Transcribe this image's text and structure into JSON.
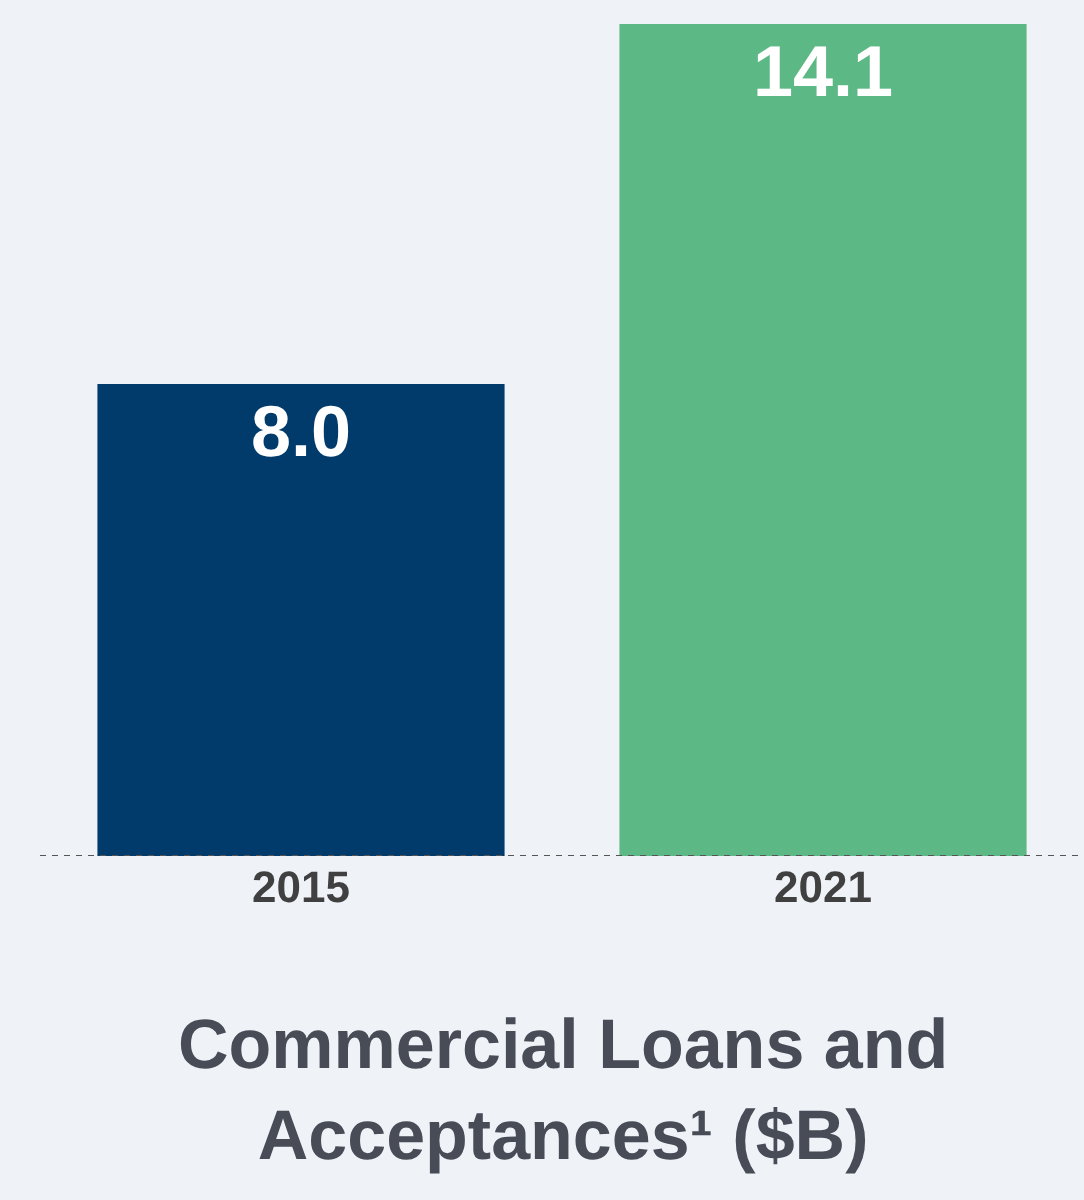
{
  "chart_data": {
    "type": "bar",
    "title": "Commercial Loans and Acceptances¹ ($B)",
    "categories": [
      "2015",
      "2021"
    ],
    "values": [
      8.0,
      14.1
    ],
    "colors": [
      "#003b6c",
      "#5cb985"
    ],
    "value_labels": [
      "8.0",
      "14.1"
    ],
    "grid": false,
    "legend": false,
    "tick_labels": "x",
    "ref_lines": [
      {
        "axis": "y",
        "value": 0,
        "label": null,
        "color": "#555555",
        "line_style": "dotted"
      }
    ]
  }
}
